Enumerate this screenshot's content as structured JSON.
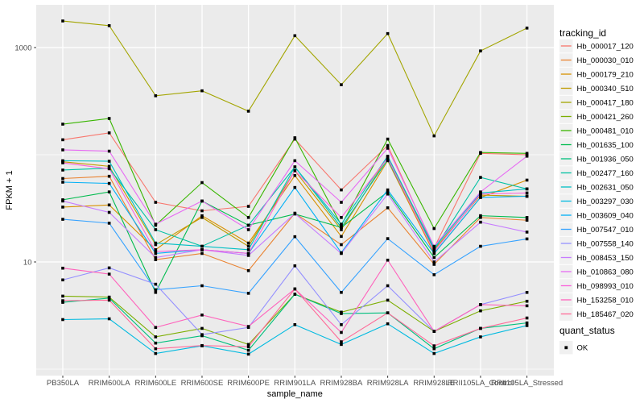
{
  "figure": {
    "background": "#FFFFFF",
    "panel_background": "#EBEBEB",
    "grid_color": "#FFFFFF",
    "axis_text_color": "#4D4D4D",
    "axis_title_color": "#000000",
    "tick_mark_color": "#333333",
    "point_color": "#000000",
    "legend_key_background": "#F0F0F0"
  },
  "chart_data": {
    "type": "line",
    "title": "",
    "xlabel": "sample_name",
    "ylabel": "FPKM + 1",
    "y_scale": "log10",
    "ylim": [
      0.87,
      2500
    ],
    "grid": true,
    "legend_position": "right",
    "y_ticks": [
      {
        "label": "1000",
        "value": 1000
      },
      {
        "label": "10",
        "value": 10
      }
    ],
    "y_minor_gridlines": [
      1,
      100
    ],
    "categories": [
      "PB350LA",
      "RRIM600LA",
      "RRIM600LE",
      "RRIM600SE",
      "RRIM600PE",
      "RRIM901LA",
      "RRIM928BA",
      "RRIM928LA",
      "RRIM928LE",
      "RRII105LA_Control",
      "RRII105LA_Stressed"
    ],
    "legend_title": "tracking_id",
    "quant_legend": {
      "title": "quant_status",
      "items": [
        "OK"
      ]
    },
    "series": [
      {
        "name": "Hb_000017_120",
        "color": "#F8766D",
        "values": [
          138,
          160,
          36,
          30,
          33,
          140,
          47,
          122,
          13.5,
          103,
          100
        ]
      },
      {
        "name": "Hb_000030_010",
        "color": "#EA8331",
        "values": [
          60,
          63,
          10.5,
          12,
          8.3,
          28.5,
          14.5,
          32,
          9.5,
          26,
          24.5
        ]
      },
      {
        "name": "Hb_000179_210",
        "color": "#D89000",
        "values": [
          32.5,
          34,
          13,
          27,
          15,
          64,
          17.3,
          88,
          12,
          40,
          58
        ]
      },
      {
        "name": "Hb_000340_510",
        "color": "#C09B00",
        "values": [
          86,
          78,
          14.5,
          26,
          14,
          71,
          20,
          95,
          13,
          42,
          41
        ]
      },
      {
        "name": "Hb_000417_180",
        "color": "#A3A500",
        "values": [
          1770,
          1600,
          355,
          395,
          255,
          1290,
          450,
          1350,
          150,
          930,
          1520
        ]
      },
      {
        "name": "Hb_000421_260",
        "color": "#7CAE00",
        "values": [
          4.8,
          4.7,
          2.0,
          2.4,
          1.7,
          5.0,
          3.4,
          4.4,
          2.25,
          3.5,
          4.3
        ]
      },
      {
        "name": "Hb_000481_010",
        "color": "#39B600",
        "values": [
          193,
          218,
          22,
          55,
          26,
          144,
          22,
          140,
          20.5,
          105,
          103
        ]
      },
      {
        "name": "Hb_001635_100",
        "color": "#00BB4E",
        "values": [
          38,
          45,
          5.2,
          37,
          22,
          28,
          21,
          45,
          11,
          27,
          26
        ]
      },
      {
        "name": "Hb_001936_050",
        "color": "#00BF7D",
        "values": [
          4.2,
          4.6,
          1.75,
          2.05,
          1.5,
          5.0,
          3.3,
          3.35,
          1.55,
          2.4,
          2.7
        ]
      },
      {
        "name": "Hb_002477_160",
        "color": "#00C1A3",
        "values": [
          72,
          75,
          20,
          14,
          22,
          77,
          21,
          90,
          13,
          61.5,
          48
        ]
      },
      {
        "name": "Hb_002631_050",
        "color": "#00BFC4",
        "values": [
          88,
          87,
          15,
          14,
          13,
          77,
          22.5,
          97,
          13.5,
          44,
          48
        ]
      },
      {
        "name": "Hb_003297_030",
        "color": "#00BAE0",
        "values": [
          2.9,
          2.95,
          1.4,
          1.65,
          1.38,
          2.6,
          1.7,
          2.65,
          1.4,
          2.0,
          2.55
        ]
      },
      {
        "name": "Hb_003609_040",
        "color": "#00B0F6",
        "values": [
          55.5,
          54,
          12,
          13,
          12,
          49.5,
          12.2,
          47,
          12,
          40,
          41
        ]
      },
      {
        "name": "Hb_007547_010",
        "color": "#35A2FF",
        "values": [
          25,
          23,
          5.5,
          6.0,
          5.1,
          17.2,
          5.2,
          16.5,
          7.6,
          14,
          16.4
        ]
      },
      {
        "name": "Hb_007558_140",
        "color": "#9590FF",
        "values": [
          6.8,
          8.8,
          6.2,
          2.1,
          2.45,
          9.2,
          2.6,
          6.0,
          2.25,
          4.0,
          5.2
        ]
      },
      {
        "name": "Hb_008453_150",
        "color": "#C77CFF",
        "values": [
          37,
          29,
          11,
          13,
          11.5,
          28.3,
          12,
          43,
          10,
          23.5,
          19
        ]
      },
      {
        "name": "Hb_010863_080",
        "color": "#E76BF3",
        "values": [
          111,
          108,
          22.5,
          37,
          20,
          88,
          36,
          115,
          14,
          45,
          97
        ]
      },
      {
        "name": "Hb_098993_010",
        "color": "#FA62DB",
        "values": [
          84,
          74,
          12.5,
          13,
          12,
          71,
          26,
          93,
          12.5,
          43,
          44
        ]
      },
      {
        "name": "Hb_153258_010",
        "color": "#FF62BC",
        "values": [
          8.75,
          7.7,
          2.45,
          3.2,
          2.5,
          5.6,
          2.2,
          10.4,
          2.25,
          4.0,
          3.9
        ]
      },
      {
        "name": "Hb_185467_020",
        "color": "#FF6A98",
        "values": [
          4.35,
          4.4,
          1.55,
          1.66,
          1.62,
          5.6,
          1.8,
          3.35,
          1.65,
          2.4,
          3.0
        ]
      }
    ]
  }
}
